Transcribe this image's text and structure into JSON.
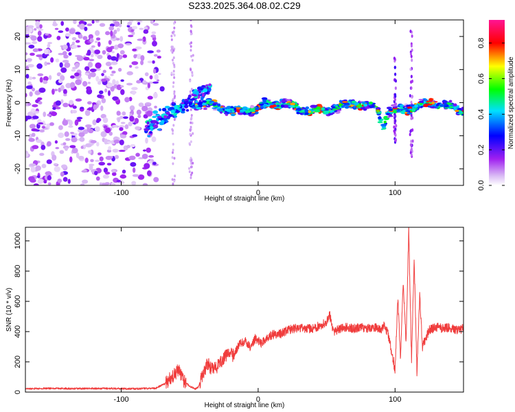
{
  "chart_data": [
    {
      "type": "heatmap",
      "title": "S233.2025.364.08.02.C29",
      "xlabel": "Height of straight line (km)",
      "ylabel": "Frequency (Hz)",
      "xlim": [
        -170,
        150
      ],
      "ylim": [
        -25,
        25
      ],
      "xticks": [
        -100,
        0,
        100
      ],
      "yticks": [
        -20,
        -10,
        0,
        10,
        20
      ],
      "colorbar": {
        "label": "Normalized spectral amplitude",
        "ticks": [
          "0.0",
          "0.2",
          "0.4",
          "0.6",
          "0.8"
        ],
        "tick_values": [
          0.0,
          0.2,
          0.4,
          0.6,
          0.8
        ],
        "range": [
          0,
          0.93
        ],
        "colormap": [
          "#ffffff",
          "#a020f0",
          "#0000ff",
          "#00ffff",
          "#00ff00",
          "#ffff00",
          "#ff0000",
          "#ff00ff"
        ]
      },
      "features": [
        {
          "name": "noise-cloud",
          "x_range": [
            -170,
            -72
          ],
          "y_range": [
            -25,
            25
          ],
          "amplitude": "low"
        },
        {
          "name": "main-trace",
          "x_range": [
            -75,
            150
          ],
          "y_center": 0,
          "amplitude_peak": 0.9
        },
        {
          "name": "vertical-streak",
          "x": 100,
          "y_range": [
            -12,
            14
          ]
        },
        {
          "name": "vertical-streak",
          "x": 112,
          "y_range": [
            -17,
            22
          ]
        }
      ]
    },
    {
      "type": "line",
      "xlabel": "Height of straight line (km)",
      "ylabel": "SNR (10 * v/v)",
      "xlim": [
        -170,
        150
      ],
      "ylim": [
        0,
        1090
      ],
      "xticks": [
        -100,
        0,
        100
      ],
      "yticks": [
        0,
        200,
        400,
        600,
        800,
        1000
      ],
      "color": "#f03c3c",
      "series": [
        {
          "name": "SNR",
          "x": [
            -170,
            -150,
            -130,
            -110,
            -90,
            -75,
            -68,
            -62,
            -58,
            -55,
            -50,
            -46,
            -44,
            -40,
            -37,
            -34,
            -30,
            -26,
            -22,
            -18,
            -14,
            -10,
            -6,
            -2,
            2,
            6,
            10,
            15,
            20,
            25,
            30,
            35,
            40,
            45,
            50,
            52,
            55,
            60,
            65,
            70,
            75,
            80,
            85,
            90,
            92,
            95,
            100,
            102,
            104,
            106,
            108,
            110,
            112,
            114,
            116,
            118,
            120,
            125,
            130,
            135,
            140,
            145,
            150
          ],
          "values": [
            22,
            25,
            23,
            24,
            22,
            25,
            55,
            110,
            150,
            80,
            40,
            20,
            30,
            120,
            190,
            150,
            165,
            210,
            260,
            240,
            310,
            340,
            300,
            355,
            320,
            350,
            380,
            380,
            400,
            420,
            420,
            420,
            420,
            440,
            460,
            520,
            400,
            420,
            430,
            420,
            430,
            420,
            430,
            420,
            440,
            380,
            150,
            620,
            230,
            740,
            320,
            1070,
            220,
            880,
            120,
            650,
            300,
            410,
            430,
            420,
            430,
            410,
            420
          ]
        }
      ]
    }
  ]
}
